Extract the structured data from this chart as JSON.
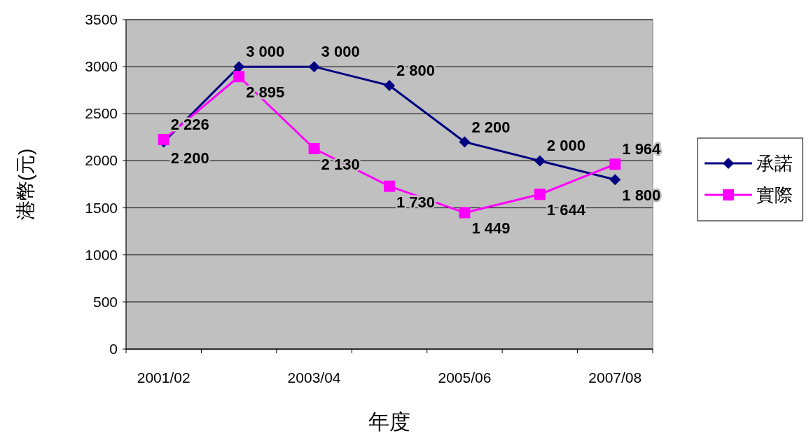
{
  "chart_data": {
    "type": "line",
    "xlabel": "年度",
    "ylabel": "港幣(元)",
    "categories": [
      "2001/02",
      null,
      "2003/04",
      null,
      "2005/06",
      null,
      "2007/08"
    ],
    "ylim": [
      0,
      3500
    ],
    "yticks": [
      0,
      500,
      1000,
      1500,
      2000,
      2500,
      3000,
      3500
    ],
    "grid": "y",
    "legend": "right",
    "line_style": "solid",
    "series": [
      {
        "name": "承諾",
        "color": "#000080",
        "marker": "diamond",
        "values": [
          2200,
          3000,
          3000,
          2800,
          2200,
          2000,
          1800
        ],
        "value_labels": [
          "2 200",
          "3 000",
          "3 000",
          "2 800",
          "2 200",
          "2 000",
          "1 800"
        ]
      },
      {
        "name": "實際",
        "color": "#ff00ff",
        "marker": "square",
        "values": [
          2226,
          2895,
          2130,
          1730,
          1449,
          1644,
          1964
        ],
        "value_labels": [
          "2 226",
          "2 895",
          "2 130",
          "1 730",
          "1 449",
          "1 644",
          "1 964"
        ]
      }
    ]
  }
}
